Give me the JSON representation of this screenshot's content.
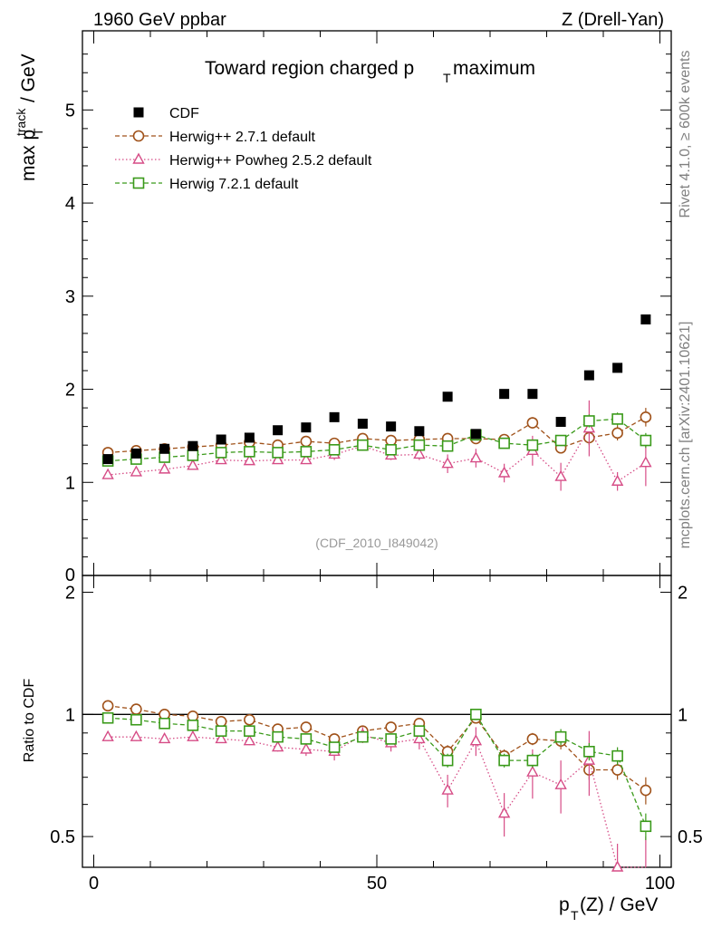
{
  "header": {
    "left": "1960 GeV ppbar",
    "right": "Z (Drell-Yan)"
  },
  "side_labels": {
    "rivet": "Rivet 4.1.0, ≥ 600k events",
    "mcplots": "mcplots.cern.ch [arXiv:2401.10621]"
  },
  "colors": {
    "cdf": "#000000",
    "herwig271": "#a0521a",
    "powheg": "#d64c86",
    "herwig721": "#3a9a1a"
  },
  "chart_data": [
    {
      "type": "scatter",
      "title_main": "Toward region charged p",
      "title_sub": "T",
      "title_end": " maximum",
      "ylabel_main": "max p",
      "ylabel_sup": "track",
      "ylabel_sub": "T",
      "ylabel_end": " / GeV",
      "watermark": "(CDF_2010_I849042)",
      "xlim": [
        -2,
        102
      ],
      "ylim": [
        0,
        5.85
      ],
      "yticks": [
        "1",
        "2",
        "3",
        "4",
        "5"
      ],
      "ytick_values": [
        1,
        2,
        3,
        4,
        5
      ],
      "ytick_zero": "0",
      "x": [
        2.5,
        7.5,
        12.5,
        17.5,
        22.5,
        27.5,
        32.5,
        37.5,
        42.5,
        47.5,
        52.5,
        57.5,
        62.5,
        67.5,
        72.5,
        77.5,
        82.5,
        87.5,
        92.5,
        97.5
      ],
      "series": [
        {
          "name": "CDF",
          "key": "cdf",
          "marker": "square-filled",
          "line": "none",
          "values": [
            1.25,
            1.31,
            1.36,
            1.39,
            1.46,
            1.48,
            1.56,
            1.59,
            1.7,
            1.63,
            1.6,
            1.55,
            1.92,
            1.52,
            1.95,
            1.95,
            1.65,
            2.15,
            2.23,
            2.75
          ]
        },
        {
          "name": "Herwig++ 2.7.1 default",
          "key": "herwig271",
          "marker": "circle-open",
          "line": "dashed",
          "values": [
            1.32,
            1.34,
            1.36,
            1.38,
            1.4,
            1.43,
            1.4,
            1.44,
            1.42,
            1.47,
            1.45,
            1.46,
            1.47,
            1.47,
            1.46,
            1.64,
            1.37,
            1.48,
            1.53,
            1.7
          ],
          "errors": [
            0.02,
            0.02,
            0.02,
            0.02,
            0.02,
            0.02,
            0.02,
            0.02,
            0.03,
            0.03,
            0.03,
            0.03,
            0.04,
            0.04,
            0.05,
            0.06,
            0.06,
            0.08,
            0.08,
            0.1
          ]
        },
        {
          "name": "Herwig++ Powheg 2.5.2 default",
          "key": "powheg",
          "marker": "triangle-open",
          "line": "dotted",
          "values": [
            1.08,
            1.11,
            1.14,
            1.18,
            1.24,
            1.23,
            1.24,
            1.24,
            1.3,
            1.39,
            1.29,
            1.3,
            1.2,
            1.26,
            1.1,
            1.34,
            1.06,
            1.58,
            1.01,
            1.21
          ],
          "errors": [
            0.02,
            0.02,
            0.02,
            0.02,
            0.03,
            0.03,
            0.03,
            0.04,
            0.06,
            0.05,
            0.05,
            0.06,
            0.1,
            0.1,
            0.1,
            0.16,
            0.15,
            0.3,
            0.1,
            0.25
          ]
        },
        {
          "name": "Herwig 7.2.1 default",
          "key": "herwig721",
          "marker": "square-open",
          "line": "dashed",
          "values": [
            1.23,
            1.25,
            1.27,
            1.29,
            1.32,
            1.33,
            1.32,
            1.33,
            1.35,
            1.4,
            1.35,
            1.4,
            1.39,
            1.51,
            1.42,
            1.4,
            1.45,
            1.66,
            1.68,
            1.45
          ],
          "errors": [
            0.02,
            0.02,
            0.02,
            0.02,
            0.02,
            0.02,
            0.02,
            0.02,
            0.03,
            0.03,
            0.03,
            0.03,
            0.04,
            0.04,
            0.05,
            0.05,
            0.05,
            0.07,
            0.07,
            0.08
          ]
        }
      ]
    },
    {
      "type": "line",
      "ylabel": "Ratio to CDF",
      "xlabel_main": "p",
      "xlabel_sub": "T",
      "xlabel_end": "(Z) / GeV",
      "xlim": [
        -2,
        102
      ],
      "ylim": [
        0.42,
        2.2
      ],
      "xticks": [
        "0",
        "50",
        "100"
      ],
      "xtick_values": [
        0,
        50,
        100
      ],
      "yticks": [
        "0.5",
        "1",
        "2"
      ],
      "ytick_values": [
        0.5,
        1,
        2
      ],
      "reference": 1,
      "x": [
        2.5,
        7.5,
        12.5,
        17.5,
        22.5,
        27.5,
        32.5,
        37.5,
        42.5,
        47.5,
        52.5,
        57.5,
        62.5,
        67.5,
        72.5,
        77.5,
        82.5,
        87.5,
        92.5,
        97.5
      ],
      "series": [
        {
          "name": "Herwig++ 2.7.1 default",
          "key": "herwig271",
          "marker": "circle-open",
          "line": "dashed",
          "values": [
            1.05,
            1.03,
            1.0,
            0.99,
            0.96,
            0.97,
            0.92,
            0.93,
            0.87,
            0.91,
            0.93,
            0.95,
            0.81,
            0.98,
            0.79,
            0.87,
            0.86,
            0.73,
            0.73,
            0.65
          ],
          "errors": [
            0.02,
            0.02,
            0.02,
            0.02,
            0.02,
            0.02,
            0.02,
            0.02,
            0.02,
            0.02,
            0.02,
            0.02,
            0.03,
            0.03,
            0.03,
            0.03,
            0.04,
            0.04,
            0.04,
            0.05
          ]
        },
        {
          "name": "Herwig++ Powheg 2.5.2 default",
          "key": "powheg",
          "marker": "triangle-open",
          "line": "dotted",
          "values": [
            0.88,
            0.88,
            0.87,
            0.88,
            0.87,
            0.86,
            0.83,
            0.82,
            0.81,
            0.89,
            0.85,
            0.87,
            0.65,
            0.86,
            0.57,
            0.72,
            0.67,
            0.77,
            0.42,
            0.41
          ],
          "errors": [
            0.02,
            0.02,
            0.02,
            0.02,
            0.02,
            0.02,
            0.02,
            0.03,
            0.04,
            0.04,
            0.04,
            0.05,
            0.06,
            0.07,
            0.07,
            0.1,
            0.1,
            0.14,
            0.06,
            0.09
          ]
        },
        {
          "name": "Herwig 7.2.1 default",
          "key": "herwig721",
          "marker": "square-open",
          "line": "dashed",
          "values": [
            0.98,
            0.97,
            0.95,
            0.94,
            0.91,
            0.91,
            0.88,
            0.87,
            0.83,
            0.88,
            0.87,
            0.91,
            0.77,
            1.0,
            0.77,
            0.77,
            0.88,
            0.81,
            0.79,
            0.53
          ],
          "errors": [
            0.02,
            0.02,
            0.02,
            0.02,
            0.02,
            0.02,
            0.02,
            0.02,
            0.02,
            0.02,
            0.02,
            0.02,
            0.03,
            0.03,
            0.03,
            0.03,
            0.04,
            0.04,
            0.04,
            0.04
          ]
        }
      ]
    }
  ]
}
